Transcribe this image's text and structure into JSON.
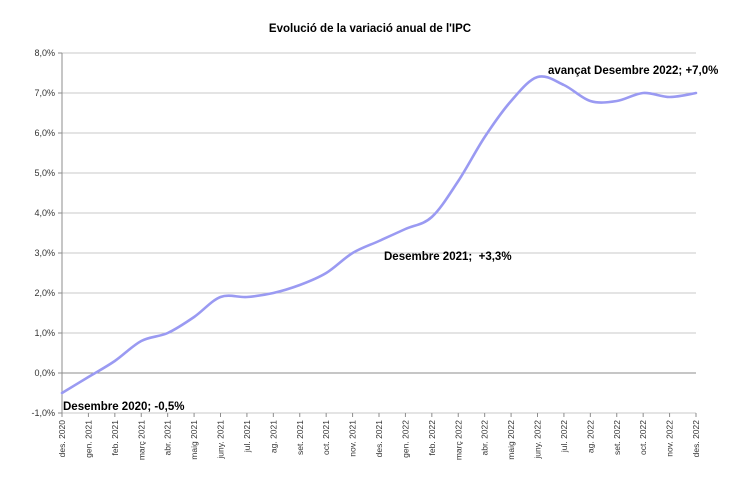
{
  "chart_data": {
    "type": "line",
    "title": "Evolució de la variació anual de l'IPC",
    "series_name": "Variació anual de l'IPC",
    "categories": [
      "des. 2020",
      "gen. 2021",
      "feb. 2021",
      "març 2021",
      "abr. 2021",
      "maig 2021",
      "juny. 2021",
      "jul. 2021",
      "ag. 2021",
      "set. 2021",
      "oct. 2021",
      "nov. 2021",
      "des. 2021",
      "gen. 2022",
      "feb. 2022",
      "març 2022",
      "abr. 2022",
      "maig 2022",
      "juny. 2022",
      "jul. 2022",
      "ag. 2022",
      "set. 2022",
      "oct. 2022",
      "nov. 2022",
      "des. 2022"
    ],
    "values": [
      -0.5,
      -0.1,
      0.3,
      0.8,
      1.0,
      1.4,
      1.9,
      1.9,
      2.0,
      2.2,
      2.5,
      3.0,
      3.3,
      3.6,
      3.9,
      4.8,
      5.9,
      6.8,
      7.4,
      7.2,
      6.8,
      6.8,
      7.0,
      6.9,
      7.0
    ],
    "ylim": [
      -1,
      8
    ],
    "ytick_step": 1,
    "ytick_labels": [
      "8,0%",
      "7,0%",
      "6,0%",
      "5,0%",
      "4,0%",
      "3,0%",
      "2,0%",
      "1,0%",
      "0,0%",
      "-1,0%"
    ],
    "grid": true,
    "legend": "none",
    "line_smoothed": true,
    "colors": {
      "line": "#9a9af2",
      "gridline": "#c9c9c9",
      "axis": "#8c8c8c",
      "tick_label": "#333333",
      "text": "#000000",
      "background": "#ffffff"
    },
    "annotations": [
      {
        "text": "Desembre 2020; -0,5%",
        "anchor_category": "des. 2020",
        "value": -0.5
      },
      {
        "text": "Desembre 2021;  +3,3%",
        "anchor_category": "des. 2021",
        "value": 3.3
      },
      {
        "text": "avançat Desembre 2022; +7,0%",
        "anchor_category": "des. 2022",
        "value": 7.0
      }
    ]
  }
}
